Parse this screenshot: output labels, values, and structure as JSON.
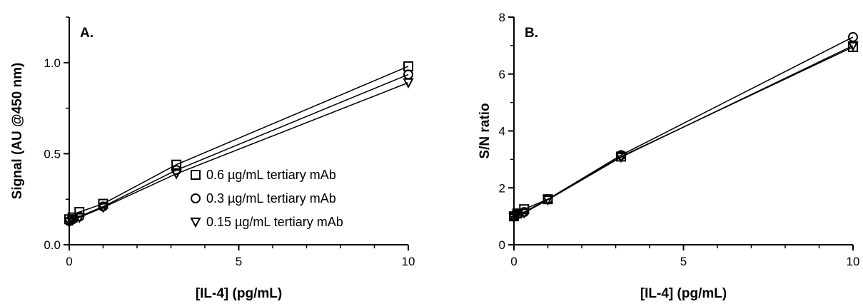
{
  "chart_data": [
    {
      "type": "line",
      "panel_label": "A.",
      "xlabel": "[IL-4] (pg/mL)",
      "ylabel": "Signal (AU @450 nm)",
      "xlim": [
        0,
        10
      ],
      "ylim": [
        0,
        1.25
      ],
      "xticks": [
        0,
        5,
        10
      ],
      "xtick_labels": [
        "0",
        "5",
        "10"
      ],
      "yticks": [
        0,
        0.5,
        1.0
      ],
      "ytick_labels": [
        "0.0",
        "0.5",
        "1.0"
      ],
      "grid": false,
      "legend_position": "center-right",
      "series": [
        {
          "name": "0.6 µg/mL tertiary mAb",
          "marker": "square",
          "x": [
            0,
            0.1,
            0.3,
            1,
            3.16,
            10
          ],
          "y": [
            0.14,
            0.15,
            0.18,
            0.225,
            0.44,
            0.98
          ]
        },
        {
          "name": "0.3 µg/mL tertiary mAb",
          "marker": "circle",
          "x": [
            0,
            0.1,
            0.3,
            1,
            3.16,
            10
          ],
          "y": [
            0.13,
            0.14,
            0.155,
            0.21,
            0.41,
            0.935
          ]
        },
        {
          "name": "0.15 µg/mL tertiary mAb",
          "marker": "triangle-down",
          "x": [
            0,
            0.1,
            0.3,
            1,
            3.16,
            10
          ],
          "y": [
            0.125,
            0.135,
            0.15,
            0.205,
            0.39,
            0.89
          ]
        }
      ]
    },
    {
      "type": "line",
      "panel_label": "B.",
      "xlabel": "[IL-4] (pg/mL)",
      "ylabel": "S/N ratio",
      "xlim": [
        0,
        10
      ],
      "ylim": [
        0,
        8
      ],
      "xticks": [
        0,
        5,
        10
      ],
      "xtick_labels": [
        "0",
        "5",
        "10"
      ],
      "yticks": [
        0,
        2,
        4,
        6,
        8
      ],
      "ytick_labels": [
        "0",
        "2",
        "4",
        "6",
        "8"
      ],
      "grid": false,
      "series": [
        {
          "name": "0.6 µg/mL tertiary mAb",
          "marker": "square",
          "x": [
            0,
            0.1,
            0.3,
            1,
            3.16,
            10
          ],
          "y": [
            1.0,
            1.1,
            1.25,
            1.6,
            3.1,
            6.95
          ]
        },
        {
          "name": "0.3 µg/mL tertiary mAb",
          "marker": "circle",
          "x": [
            0,
            0.1,
            0.3,
            1,
            3.16,
            10
          ],
          "y": [
            1.0,
            1.08,
            1.15,
            1.6,
            3.15,
            7.3
          ]
        },
        {
          "name": "0.15 µg/mL tertiary mAb",
          "marker": "triangle-down",
          "x": [
            0,
            0.1,
            0.3,
            1,
            3.16,
            10
          ],
          "y": [
            0.95,
            1.05,
            1.12,
            1.58,
            3.08,
            7.0
          ]
        }
      ]
    }
  ]
}
